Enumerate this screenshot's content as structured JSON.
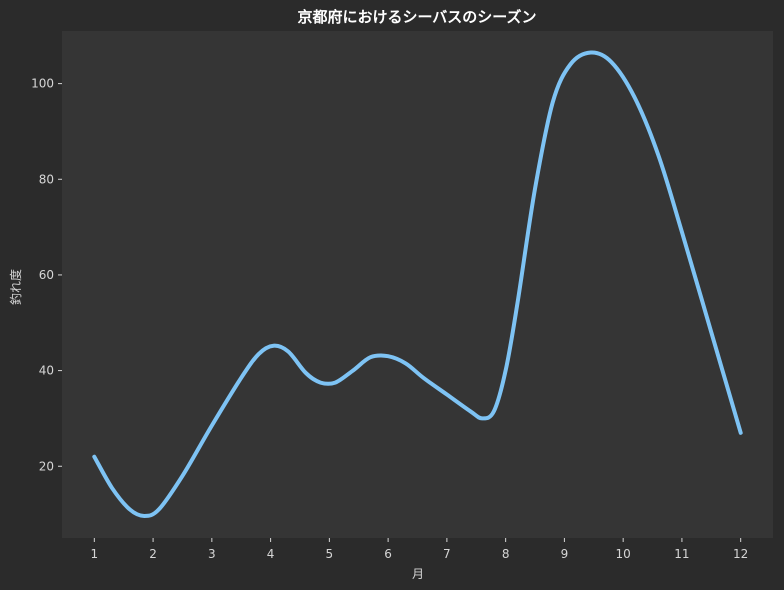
{
  "chart_data": {
    "type": "line",
    "title": "京都府におけるシーバスのシーズン",
    "xlabel": "月",
    "ylabel": "釣れ度",
    "x": [
      1,
      2,
      3,
      4,
      5,
      6,
      7,
      8,
      9,
      10,
      11,
      12
    ],
    "xlim": [
      0.45,
      12.55
    ],
    "ylim": [
      5,
      111
    ],
    "yticks": [
      20,
      40,
      60,
      80,
      100
    ],
    "grid": false,
    "series": [
      {
        "values": [
          22,
          10,
          27,
          45,
          37.5,
          43,
          35,
          40,
          97,
          100,
          68,
          27
        ],
        "color": "#7ec3f4"
      }
    ],
    "curve_samples": [
      [
        1,
        22
      ],
      [
        1.3,
        15.5
      ],
      [
        1.6,
        11
      ],
      [
        1.85,
        9.6
      ],
      [
        2.1,
        11
      ],
      [
        2.5,
        18
      ],
      [
        3,
        28.5
      ],
      [
        3.5,
        38.5
      ],
      [
        3.8,
        43.5
      ],
      [
        4.05,
        45.2
      ],
      [
        4.3,
        44
      ],
      [
        4.6,
        39.5
      ],
      [
        4.85,
        37.5
      ],
      [
        5.1,
        37.5
      ],
      [
        5.4,
        40
      ],
      [
        5.7,
        42.8
      ],
      [
        6,
        43
      ],
      [
        6.3,
        41.5
      ],
      [
        6.6,
        38.5
      ],
      [
        7,
        35
      ],
      [
        7.4,
        31.5
      ],
      [
        7.6,
        30
      ],
      [
        7.8,
        31.5
      ],
      [
        8,
        40
      ],
      [
        8.2,
        54
      ],
      [
        8.5,
        78
      ],
      [
        8.8,
        96
      ],
      [
        9.1,
        104
      ],
      [
        9.45,
        106.5
      ],
      [
        9.8,
        104.5
      ],
      [
        10.2,
        97
      ],
      [
        10.6,
        85
      ],
      [
        11,
        69
      ],
      [
        11.5,
        48
      ],
      [
        12,
        27
      ]
    ]
  },
  "style": {
    "page_bg": "#2b2b2b",
    "plot_bg": "#353535",
    "text_color": "#d6d6d6",
    "title_color": "#ffffff"
  }
}
